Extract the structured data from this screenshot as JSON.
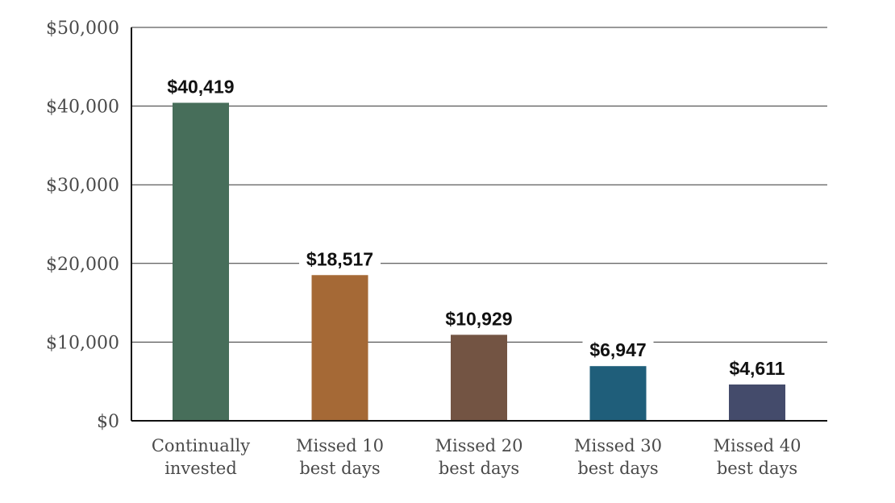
{
  "chart_data": {
    "type": "bar",
    "categories": [
      [
        "Continually",
        "invested"
      ],
      [
        "Missed 10",
        "best days"
      ],
      [
        "Missed 20",
        "best days"
      ],
      [
        "Missed 30",
        "best days"
      ],
      [
        "Missed 40",
        "best days"
      ]
    ],
    "values": [
      40419,
      18517,
      10929,
      6947,
      4611
    ],
    "data_labels": [
      "$40,419",
      "$18,517",
      "$10,929",
      "$6,947",
      "$4,611"
    ],
    "colors": [
      "#476e5a",
      "#a56936",
      "#735443",
      "#1f5e7a",
      "#444b6b"
    ],
    "ylim": [
      0,
      50000
    ],
    "yticks": [
      0,
      10000,
      20000,
      30000,
      40000,
      50000
    ],
    "ytick_labels": [
      "$0",
      "$10,000",
      "$20,000",
      "$30,000",
      "$40,000",
      "$50,000"
    ],
    "grid": true,
    "legend": "none",
    "title": "",
    "xlabel": "",
    "ylabel": ""
  }
}
